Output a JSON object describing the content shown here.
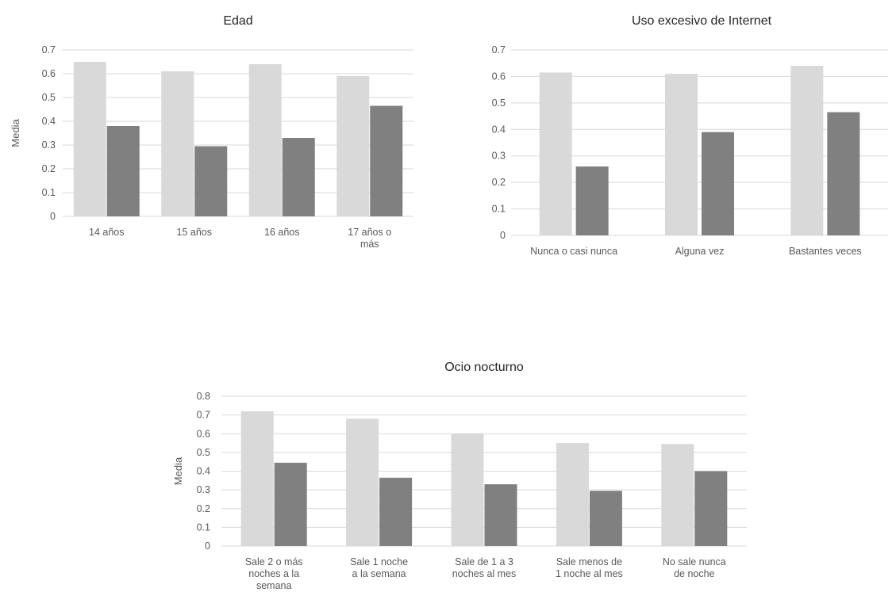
{
  "colors": {
    "light_series": "#d9d9d9",
    "dark_series": "#808080",
    "grid": "#d9d9d9"
  },
  "chart_data": [
    {
      "type": "bar",
      "title": "Edad",
      "ylabel": "Media",
      "ylim": [
        0,
        0.7
      ],
      "yticks": [
        "0",
        "0.1",
        "0.2",
        "0.3",
        "0.4",
        "0.5",
        "0.6",
        "0.7"
      ],
      "grid": true,
      "categories": [
        [
          "14 años"
        ],
        [
          "15 años"
        ],
        [
          "16 años"
        ],
        [
          "17 años o",
          "más"
        ]
      ],
      "series": [
        {
          "values": [
            0.65,
            0.61,
            0.64,
            0.59
          ]
        },
        {
          "values": [
            0.38,
            0.295,
            0.33,
            0.465
          ]
        }
      ]
    },
    {
      "type": "bar",
      "title": "Uso excesivo de Internet",
      "ylabel": "",
      "ylim": [
        0,
        0.7
      ],
      "yticks": [
        "0",
        "0.1",
        "0.2",
        "0.3",
        "0.4",
        "0.5",
        "0.6",
        "0.7"
      ],
      "grid": true,
      "categories": [
        [
          "Nunca o casi nunca"
        ],
        [
          "Alguna vez"
        ],
        [
          "Bastantes veces"
        ]
      ],
      "series": [
        {
          "values": [
            0.615,
            0.61,
            0.64
          ]
        },
        {
          "values": [
            0.26,
            0.39,
            0.465
          ]
        }
      ]
    },
    {
      "type": "bar",
      "title": "Ocio nocturno",
      "ylabel": "Media",
      "ylim": [
        0,
        0.8
      ],
      "yticks": [
        "0",
        "0.1",
        "0.2",
        "0.3",
        "0.4",
        "0.5",
        "0.6",
        "0.7",
        "0.8"
      ],
      "grid": true,
      "categories": [
        [
          "Sale 2 o más",
          "noches a la",
          "semana"
        ],
        [
          "Sale 1 noche",
          "a la semana"
        ],
        [
          "Sale de 1 a 3",
          "noches al mes"
        ],
        [
          "Sale menos de",
          "1 noche al mes"
        ],
        [
          "No sale nunca",
          "de noche"
        ]
      ],
      "series": [
        {
          "values": [
            0.72,
            0.68,
            0.6,
            0.55,
            0.545
          ]
        },
        {
          "values": [
            0.445,
            0.365,
            0.33,
            0.295,
            0.4
          ]
        }
      ]
    }
  ]
}
